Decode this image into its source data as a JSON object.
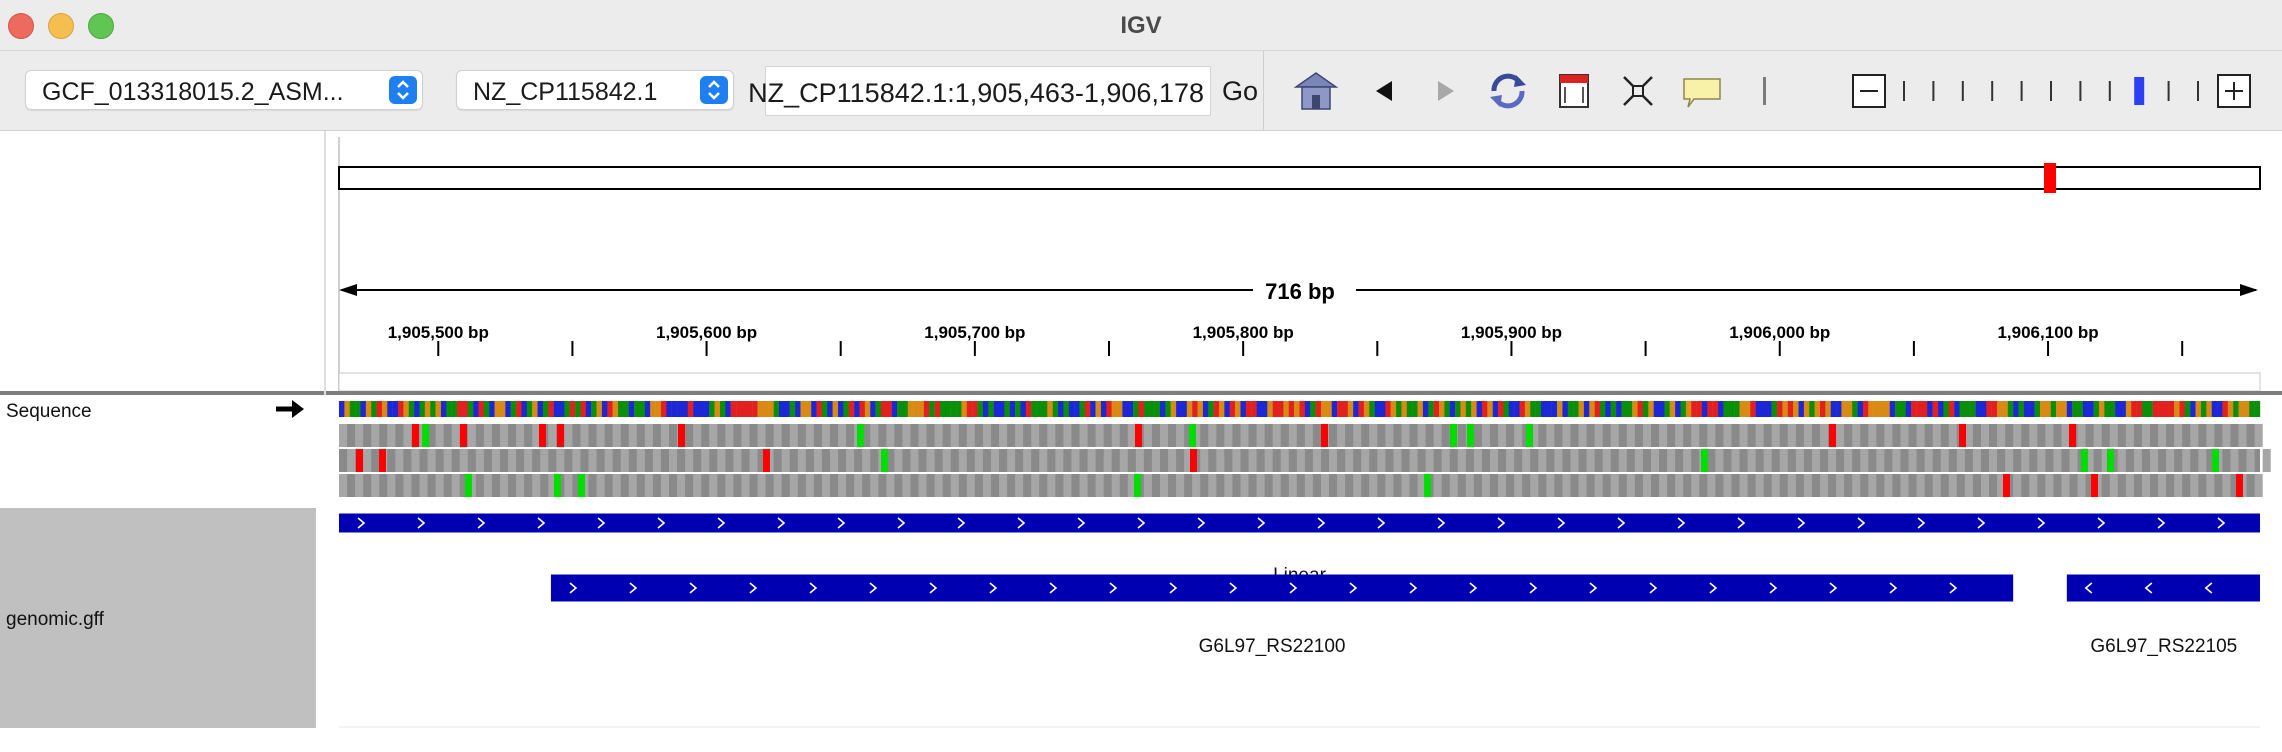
{
  "window": {
    "title": "IGV"
  },
  "toolbar": {
    "genome": "GCF_013318015.2_ASM...",
    "chromosome": "NZ_CP115842.1",
    "locus": "NZ_CP115842.1:1,905,463-1,906,178",
    "go_label": "Go",
    "zoom": {
      "ticks": 11,
      "position_fraction": 0.8
    }
  },
  "icons": [
    "home-icon",
    "back-icon",
    "forward-icon",
    "refresh-icon",
    "region-of-interest-icon",
    "resize-icon",
    "popup-info-icon"
  ],
  "ruler": {
    "span_label": "716 bp",
    "tick_labels": [
      "1,905,500 bp",
      "1,905,600 bp",
      "1,905,700 bp",
      "1,905,800 bp",
      "1,905,900 bp",
      "1,906,000 bp",
      "1,906,100 bp"
    ],
    "start": 1905463,
    "end": 1906178
  },
  "tracks": {
    "sequence_label": "Sequence",
    "gff_label": "genomic.gff",
    "features": [
      {
        "name": "Linear",
        "strand": "+",
        "start": 1905463,
        "end": 1906178
      },
      {
        "name": "G6L97_RS22100",
        "strand": "+",
        "start": 1905542,
        "end": 1906086
      },
      {
        "name": "G6L97_RS22105",
        "strand": "-",
        "start": 1906107,
        "end": 1906178
      }
    ]
  },
  "colors": {
    "feature_blue": "#0000b3",
    "stop_codon": "#ff0000",
    "start_codon": "#00dd00",
    "roi_red": "#ff0000",
    "zoom_blue": "#2b3ff5"
  }
}
